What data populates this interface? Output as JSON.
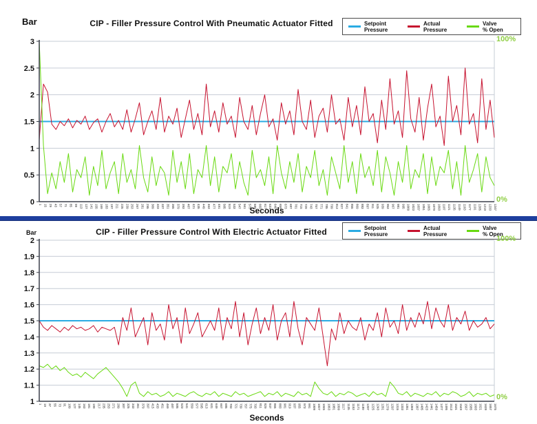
{
  "colors": {
    "setpoint": "#2aabe3",
    "actual": "#c6112e",
    "valve": "#68d90f",
    "valve_label": "#8fce44",
    "grid": "#c6ccd6",
    "axis": "#3a3f4a",
    "tick_text": "#222222",
    "separator": "#1e3f9e",
    "separator_edge": "#16307a"
  },
  "separator": {
    "name": "chart-divider-bar"
  },
  "chart_data": [
    {
      "type": "line",
      "title": "CIP - Filler Pressure Control With Pneumatic Actuator Fitted",
      "ylabel": "Bar",
      "xlabel": "Seconds",
      "ylim": [
        0,
        3
      ],
      "y_ticks": [
        "3",
        "2.5",
        "2",
        "1.5",
        "1",
        "0.5",
        "0"
      ],
      "grid": "horizontal",
      "legend_position": "top-right",
      "right_axis": {
        "range": [
          0,
          100
        ],
        "top_label": "100%",
        "bottom_label": "0%"
      },
      "legend": [
        {
          "line1": "Setpoint",
          "line2": "Pressure",
          "color_key": "setpoint"
        },
        {
          "line1": "Actual",
          "line2": "Pressure",
          "color_key": "actual"
        },
        {
          "line1": "Valve",
          "line2": "% Open",
          "color_key": "valve"
        }
      ],
      "x_ticks": [
        1,
        15,
        29,
        43,
        57,
        71,
        85,
        99,
        113,
        127,
        141,
        155,
        169,
        183,
        197,
        211,
        225,
        239,
        253,
        267,
        281,
        295,
        309,
        323,
        337,
        351,
        365,
        379,
        393,
        407,
        421,
        435,
        449,
        463,
        477,
        491,
        505,
        519,
        533,
        547,
        561,
        575,
        589,
        603,
        617,
        631,
        645,
        659,
        673,
        687,
        701,
        715,
        729,
        743,
        757,
        771,
        785,
        799,
        813,
        827,
        841,
        855,
        869,
        883,
        897,
        911,
        925,
        939,
        953,
        967,
        981,
        995,
        1009,
        1023,
        1037,
        1051,
        1065,
        1079,
        1093,
        1107,
        1121,
        1135,
        1149,
        1163,
        1177,
        1191,
        1205,
        1219,
        1233,
        1247
      ],
      "series": [
        {
          "name": "Setpoint Pressure",
          "axis": "left",
          "color_key": "setpoint",
          "constant": 1.5,
          "width": 2
        },
        {
          "name": "Actual Pressure",
          "axis": "left",
          "color_key": "actual",
          "width": 1,
          "values": [
            1.15,
            2.2,
            2.05,
            1.45,
            1.35,
            1.5,
            1.42,
            1.55,
            1.38,
            1.52,
            1.45,
            1.6,
            1.35,
            1.48,
            1.55,
            1.3,
            1.5,
            1.65,
            1.4,
            1.52,
            1.35,
            1.72,
            1.3,
            1.55,
            1.85,
            1.25,
            1.5,
            1.7,
            1.35,
            1.95,
            1.3,
            1.6,
            1.45,
            1.75,
            1.2,
            1.55,
            1.9,
            1.35,
            1.65,
            1.25,
            2.2,
            1.4,
            1.7,
            1.3,
            1.85,
            1.45,
            1.6,
            1.2,
            1.95,
            1.5,
            1.35,
            1.8,
            1.25,
            1.65,
            2.0,
            1.4,
            1.55,
            1.15,
            1.85,
            1.45,
            1.7,
            1.25,
            2.1,
            1.5,
            1.35,
            1.9,
            1.2,
            1.6,
            1.75,
            1.3,
            2.0,
            1.45,
            1.55,
            1.15,
            1.95,
            1.4,
            1.8,
            1.25,
            2.15,
            1.5,
            1.65,
            1.1,
            1.9,
            1.35,
            2.3,
            1.45,
            1.7,
            1.2,
            2.45,
            1.55,
            1.3,
            1.95,
            1.15,
            1.75,
            2.2,
            1.4,
            1.6,
            1.05,
            2.35,
            1.5,
            1.8,
            1.25,
            2.5,
            1.45,
            1.65,
            1.1,
            2.3,
            1.35,
            1.9,
            1.2
          ]
        },
        {
          "name": "Valve % Open",
          "axis": "right",
          "color_key": "valve",
          "width": 1,
          "values": [
            100,
            35,
            5,
            18,
            8,
            25,
            12,
            30,
            6,
            20,
            15,
            28,
            4,
            22,
            10,
            32,
            8,
            18,
            25,
            5,
            30,
            12,
            20,
            8,
            35,
            15,
            6,
            28,
            10,
            22,
            18,
            4,
            32,
            12,
            25,
            8,
            30,
            5,
            20,
            15,
            35,
            10,
            28,
            6,
            22,
            18,
            30,
            8,
            25,
            12,
            4,
            32,
            15,
            20,
            10,
            28,
            5,
            35,
            18,
            8,
            25,
            12,
            30,
            6,
            22,
            15,
            32,
            10,
            20,
            4,
            28,
            18,
            8,
            35,
            12,
            25,
            5,
            30,
            15,
            22,
            10,
            32,
            6,
            28,
            18,
            4,
            25,
            12,
            35,
            8,
            20,
            15,
            30,
            5,
            28,
            10,
            22,
            18,
            32,
            8,
            25,
            4,
            35,
            12,
            20,
            30,
            6,
            28,
            15,
            10
          ]
        }
      ]
    },
    {
      "type": "line",
      "title": "CIP - Filler Pressure Control With Electric Actuator Fitted",
      "ylabel": "Bar",
      "xlabel": "Seconds",
      "ylim": [
        1,
        2
      ],
      "y_ticks": [
        "2",
        "1.9",
        "1.8",
        "1.7",
        "1.6",
        "1.5",
        "1.4",
        "1.3",
        "1.2",
        "1.1",
        "1"
      ],
      "grid": "horizontal",
      "legend_position": "top-right",
      "right_axis": {
        "range": [
          0,
          100
        ],
        "top_label": "100%",
        "bottom_label": "0%"
      },
      "legend": [
        {
          "line1": "Setpoint",
          "line2": "Pressure",
          "color_key": "setpoint"
        },
        {
          "line1": "Actual",
          "line2": "Pressure",
          "color_key": "actual"
        },
        {
          "line1": "Valve",
          "line2": "% Open",
          "color_key": "valve"
        }
      ],
      "x_ticks": [
        1,
        19,
        37,
        55,
        73,
        91,
        109,
        127,
        145,
        163,
        181,
        199,
        217,
        235,
        253,
        271,
        289,
        307,
        325,
        343,
        361,
        379,
        397,
        415,
        433,
        451,
        469,
        487,
        505,
        523,
        541,
        559,
        577,
        595,
        613,
        631,
        649,
        667,
        685,
        703,
        721,
        739,
        757,
        775,
        793,
        811,
        829,
        847,
        865,
        883,
        901,
        919,
        937,
        955,
        973,
        991,
        1009,
        1027,
        1045,
        1063,
        1081,
        1099,
        1117,
        1135,
        1153,
        1171,
        1189,
        1207,
        1225,
        1243,
        1261,
        1279,
        1297,
        1315,
        1333,
        1351,
        1369,
        1387,
        1405,
        1423,
        1441,
        1459,
        1477,
        1495,
        1513,
        1531,
        1549,
        1567,
        1585,
        1603,
        1621,
        1639,
        1657,
        1675
      ],
      "series": [
        {
          "name": "Setpoint Pressure",
          "axis": "left",
          "color_key": "setpoint",
          "constant": 1.5,
          "width": 2
        },
        {
          "name": "Actual Pressure",
          "axis": "left",
          "color_key": "actual",
          "width": 1,
          "values": [
            1.5,
            1.46,
            1.44,
            1.47,
            1.45,
            1.43,
            1.46,
            1.44,
            1.47,
            1.45,
            1.46,
            1.44,
            1.45,
            1.47,
            1.43,
            1.46,
            1.45,
            1.44,
            1.46,
            1.35,
            1.52,
            1.44,
            1.58,
            1.4,
            1.46,
            1.52,
            1.35,
            1.55,
            1.44,
            1.48,
            1.38,
            1.6,
            1.45,
            1.52,
            1.36,
            1.58,
            1.42,
            1.48,
            1.55,
            1.4,
            1.45,
            1.5,
            1.44,
            1.58,
            1.38,
            1.52,
            1.45,
            1.62,
            1.4,
            1.55,
            1.35,
            1.48,
            1.58,
            1.42,
            1.52,
            1.44,
            1.6,
            1.38,
            1.5,
            1.55,
            1.4,
            1.62,
            1.45,
            1.35,
            1.52,
            1.48,
            1.44,
            1.58,
            1.4,
            1.22,
            1.45,
            1.38,
            1.55,
            1.42,
            1.5,
            1.46,
            1.44,
            1.52,
            1.38,
            1.48,
            1.44,
            1.55,
            1.4,
            1.58,
            1.46,
            1.5,
            1.42,
            1.6,
            1.44,
            1.52,
            1.46,
            1.55,
            1.48,
            1.62,
            1.45,
            1.58,
            1.5,
            1.46,
            1.6,
            1.44,
            1.52,
            1.48,
            1.56,
            1.44,
            1.5,
            1.46,
            1.48,
            1.52,
            1.45,
            1.48
          ]
        },
        {
          "name": "Valve % Open",
          "axis": "right",
          "color_key": "valve",
          "width": 1,
          "values": [
            22,
            21,
            23,
            20,
            22,
            19,
            21,
            18,
            16,
            17,
            15,
            18,
            16,
            14,
            17,
            19,
            21,
            18,
            15,
            12,
            8,
            3,
            10,
            12,
            5,
            3,
            6,
            4,
            5,
            3,
            4,
            6,
            3,
            5,
            4,
            3,
            5,
            6,
            4,
            3,
            5,
            4,
            6,
            3,
            5,
            4,
            3,
            6,
            4,
            5,
            3,
            4,
            5,
            6,
            3,
            5,
            4,
            6,
            3,
            5,
            4,
            3,
            6,
            4,
            5,
            3,
            12,
            8,
            5,
            4,
            6,
            3,
            5,
            4,
            6,
            5,
            3,
            4,
            5,
            3,
            6,
            4,
            5,
            3,
            12,
            9,
            5,
            4,
            6,
            3,
            5,
            4,
            3,
            5,
            4,
            6,
            3,
            5,
            4,
            6,
            5,
            3,
            4,
            6,
            3,
            5,
            4,
            5,
            3,
            4
          ]
        }
      ]
    }
  ]
}
